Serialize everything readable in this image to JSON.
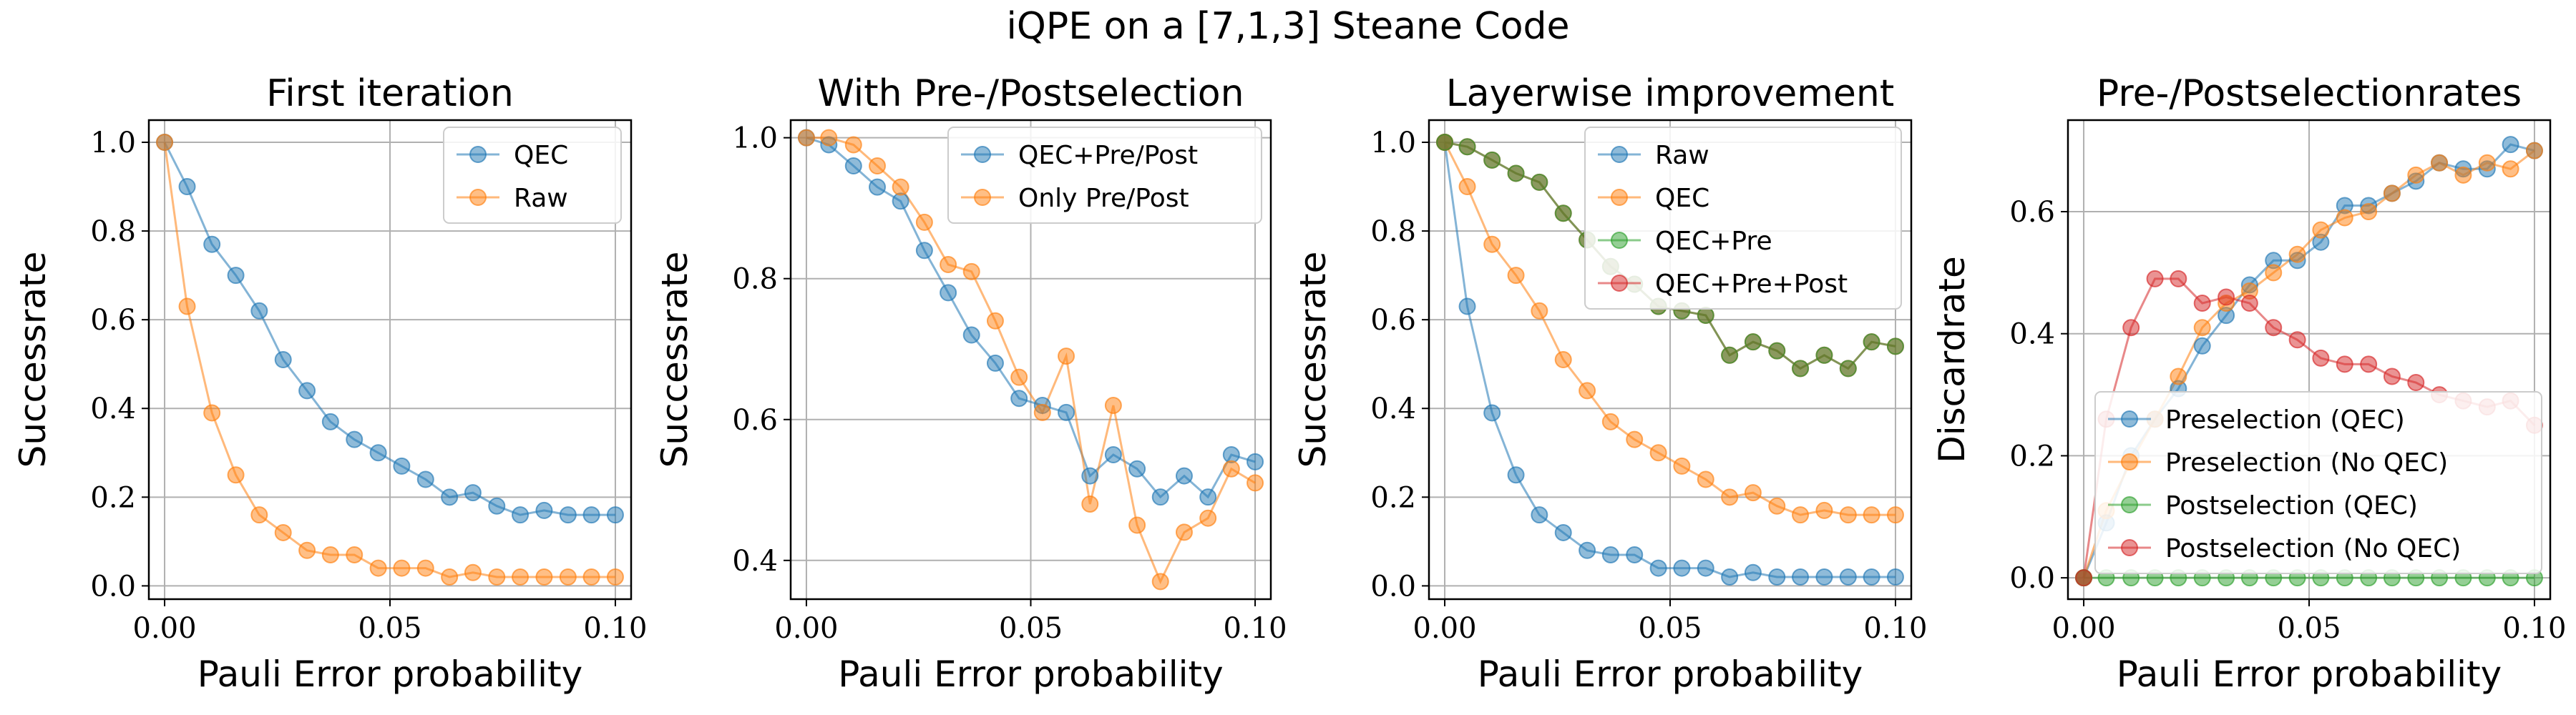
{
  "figure": {
    "title": "iQPE on a [7,1,3] Steane Code"
  },
  "colors": {
    "blue": "#1f77b4",
    "orange": "#ff7f0e",
    "green": "#2ca02c",
    "red": "#d62728",
    "brown": "#8c3b1a"
  },
  "chart_data": [
    {
      "type": "line",
      "title": "First iteration",
      "xlabel": "Pauli Error probability",
      "ylabel": "Successrate",
      "xlim": [
        -0.0035,
        0.1035
      ],
      "ylim": [
        -0.03,
        1.05
      ],
      "xticks": [
        "0.00",
        "0.05",
        "0.10"
      ],
      "xtick_values": [
        0,
        0.05,
        0.1
      ],
      "yticks": [
        "0.0",
        "0.2",
        "0.4",
        "0.6",
        "0.8",
        "1.0"
      ],
      "ytick_values": [
        0,
        0.2,
        0.4,
        0.6,
        0.8,
        1.0
      ],
      "grid": true,
      "legend_position": "upper right",
      "x": [
        0,
        0.005,
        0.0105,
        0.0158,
        0.021,
        0.0263,
        0.0316,
        0.0368,
        0.0421,
        0.0474,
        0.0526,
        0.0579,
        0.0632,
        0.0684,
        0.0737,
        0.0789,
        0.0842,
        0.0895,
        0.0947,
        0.1
      ],
      "series": [
        {
          "name": "QEC",
          "color": "blue",
          "values": [
            1.0,
            0.9,
            0.77,
            0.7,
            0.62,
            0.51,
            0.44,
            0.37,
            0.33,
            0.3,
            0.27,
            0.24,
            0.2,
            0.21,
            0.18,
            0.16,
            0.17,
            0.16,
            0.16,
            0.16
          ]
        },
        {
          "name": "Raw",
          "color": "orange",
          "values": [
            1.0,
            0.63,
            0.39,
            0.25,
            0.16,
            0.12,
            0.08,
            0.07,
            0.07,
            0.04,
            0.04,
            0.04,
            0.02,
            0.03,
            0.02,
            0.02,
            0.02,
            0.02,
            0.02,
            0.02
          ]
        }
      ]
    },
    {
      "type": "line",
      "title": "With Pre-/Postselection",
      "xlabel": "Pauli Error probability",
      "ylabel": "Successrate",
      "xlim": [
        -0.0035,
        0.1035
      ],
      "ylim": [
        0.345,
        1.025
      ],
      "xticks": [
        "0.00",
        "0.05",
        "0.10"
      ],
      "xtick_values": [
        0,
        0.05,
        0.1
      ],
      "yticks": [
        "0.4",
        "0.6",
        "0.8",
        "1.0"
      ],
      "ytick_values": [
        0.4,
        0.6,
        0.8,
        1.0
      ],
      "grid": true,
      "legend_position": "upper right",
      "x": [
        0,
        0.005,
        0.0105,
        0.0158,
        0.021,
        0.0263,
        0.0316,
        0.0368,
        0.0421,
        0.0474,
        0.0526,
        0.0579,
        0.0632,
        0.0684,
        0.0737,
        0.0789,
        0.0842,
        0.0895,
        0.0947,
        0.1
      ],
      "series": [
        {
          "name": "QEC+Pre/Post",
          "color": "blue",
          "values": [
            1.0,
            0.99,
            0.96,
            0.93,
            0.91,
            0.84,
            0.78,
            0.72,
            0.68,
            0.63,
            0.62,
            0.61,
            0.52,
            0.55,
            0.53,
            0.49,
            0.52,
            0.49,
            0.55,
            0.54
          ]
        },
        {
          "name": "Only Pre/Post",
          "color": "orange",
          "values": [
            1.0,
            1.0,
            0.99,
            0.96,
            0.93,
            0.88,
            0.82,
            0.81,
            0.74,
            0.66,
            0.61,
            0.69,
            0.48,
            0.62,
            0.45,
            0.37,
            0.44,
            0.46,
            0.53,
            0.51
          ]
        }
      ]
    },
    {
      "type": "line",
      "title": "Layerwise improvement",
      "xlabel": "Pauli Error probability",
      "ylabel": "Successrate",
      "xlim": [
        -0.0035,
        0.1035
      ],
      "ylim": [
        -0.03,
        1.05
      ],
      "xticks": [
        "0.00",
        "0.05",
        "0.10"
      ],
      "xtick_values": [
        0,
        0.05,
        0.1
      ],
      "yticks": [
        "0.0",
        "0.2",
        "0.4",
        "0.6",
        "0.8",
        "1.0"
      ],
      "ytick_values": [
        0,
        0.2,
        0.4,
        0.6,
        0.8,
        1.0
      ],
      "grid": true,
      "legend_position": "upper right",
      "x": [
        0,
        0.005,
        0.0105,
        0.0158,
        0.021,
        0.0263,
        0.0316,
        0.0368,
        0.0421,
        0.0474,
        0.0526,
        0.0579,
        0.0632,
        0.0684,
        0.0737,
        0.0789,
        0.0842,
        0.0895,
        0.0947,
        0.1
      ],
      "series": [
        {
          "name": "Raw",
          "color": "blue",
          "values": [
            1.0,
            0.63,
            0.39,
            0.25,
            0.16,
            0.12,
            0.08,
            0.07,
            0.07,
            0.04,
            0.04,
            0.04,
            0.02,
            0.03,
            0.02,
            0.02,
            0.02,
            0.02,
            0.02,
            0.02
          ]
        },
        {
          "name": "QEC",
          "color": "orange",
          "values": [
            1.0,
            0.9,
            0.77,
            0.7,
            0.62,
            0.51,
            0.44,
            0.37,
            0.33,
            0.3,
            0.27,
            0.24,
            0.2,
            0.21,
            0.18,
            0.16,
            0.17,
            0.16,
            0.16,
            0.16
          ]
        },
        {
          "name": "QEC+Pre",
          "color": "green",
          "values": [
            1.0,
            0.99,
            0.96,
            0.93,
            0.91,
            0.84,
            0.78,
            0.72,
            0.68,
            0.63,
            0.62,
            0.61,
            0.52,
            0.55,
            0.53,
            0.49,
            0.52,
            0.49,
            0.55,
            0.54
          ]
        },
        {
          "name": "QEC+Pre+Post",
          "color": "red",
          "values": [
            1.0,
            0.99,
            0.96,
            0.93,
            0.91,
            0.84,
            0.78,
            0.72,
            0.68,
            0.63,
            0.62,
            0.61,
            0.52,
            0.55,
            0.53,
            0.49,
            0.52,
            0.49,
            0.55,
            0.54
          ]
        }
      ]
    },
    {
      "type": "line",
      "title": "Pre-/Postselectionrates",
      "xlabel": "Pauli Error probability",
      "ylabel": "Discardrate",
      "xlim": [
        -0.0035,
        0.1035
      ],
      "ylim": [
        -0.035,
        0.75
      ],
      "xticks": [
        "0.00",
        "0.05",
        "0.10"
      ],
      "xtick_values": [
        0,
        0.05,
        0.1
      ],
      "yticks": [
        "0.0",
        "0.2",
        "0.4",
        "0.6"
      ],
      "ytick_values": [
        0,
        0.2,
        0.4,
        0.6
      ],
      "grid": true,
      "legend_position": "lower right",
      "x": [
        0,
        0.005,
        0.0105,
        0.0158,
        0.021,
        0.0263,
        0.0316,
        0.0368,
        0.0421,
        0.0474,
        0.0526,
        0.0579,
        0.0632,
        0.0684,
        0.0737,
        0.0789,
        0.0842,
        0.0895,
        0.0947,
        0.1
      ],
      "series": [
        {
          "name": "Preselection (QEC)",
          "color": "blue",
          "values": [
            0.0,
            0.09,
            0.2,
            0.26,
            0.31,
            0.38,
            0.43,
            0.48,
            0.52,
            0.52,
            0.55,
            0.61,
            0.61,
            0.63,
            0.65,
            0.68,
            0.67,
            0.67,
            0.71,
            0.7
          ]
        },
        {
          "name": "Preselection (No QEC)",
          "color": "orange",
          "values": [
            0.0,
            0.11,
            0.19,
            0.26,
            0.33,
            0.41,
            0.45,
            0.47,
            0.5,
            0.53,
            0.57,
            0.59,
            0.6,
            0.63,
            0.66,
            0.68,
            0.66,
            0.68,
            0.67,
            0.7
          ]
        },
        {
          "name": "Postselection (QEC)",
          "color": "green",
          "values": [
            0.0,
            0.0,
            0.0,
            0.0,
            0.0,
            0.0,
            0.0,
            0.0,
            0.0,
            0.0,
            0.0,
            0.0,
            0.0,
            0.0,
            0.0,
            0.0,
            0.0,
            0.0,
            0.0,
            0.0
          ]
        },
        {
          "name": "Postselection (No QEC)",
          "color": "red",
          "values": [
            0.0,
            0.26,
            0.41,
            0.49,
            0.49,
            0.45,
            0.46,
            0.45,
            0.41,
            0.39,
            0.36,
            0.35,
            0.35,
            0.33,
            0.32,
            0.3,
            0.29,
            0.28,
            0.29,
            0.25
          ]
        }
      ]
    }
  ]
}
